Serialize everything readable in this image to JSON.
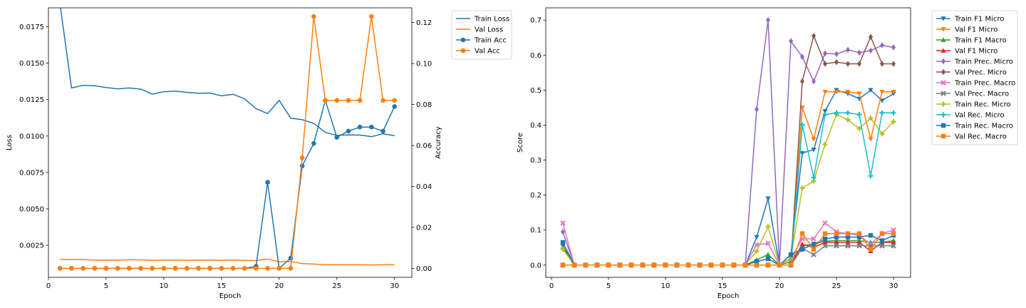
{
  "chart_data": [
    {
      "type": "line",
      "xlabel": "Epoch",
      "ylabel": "Loss",
      "y2label": "Accuracy",
      "xlim": [
        0,
        31.5
      ],
      "ylim": [
        0.0003,
        0.0188
      ],
      "y2lim": [
        -0.0044,
        0.1272
      ],
      "x_ticks": [
        0,
        5,
        10,
        15,
        20,
        25,
        30
      ],
      "y_ticks": [
        0.0025,
        0.005,
        0.0075,
        0.01,
        0.0125,
        0.015,
        0.0175
      ],
      "y2_ticks": [
        0.0,
        0.02,
        0.04,
        0.06,
        0.08,
        0.1,
        0.12
      ],
      "legend_position": "outside-top-right",
      "x": [
        1,
        2,
        3,
        4,
        5,
        6,
        7,
        8,
        9,
        10,
        11,
        12,
        13,
        14,
        15,
        16,
        17,
        18,
        19,
        20,
        21,
        22,
        23,
        24,
        25,
        26,
        27,
        28,
        29,
        30
      ],
      "series": [
        {
          "name": "Train Loss",
          "axis": "left",
          "color": "#1f77b4",
          "marker": "none",
          "values": [
            0.01905,
            0.0133,
            0.01348,
            0.01345,
            0.01333,
            0.01324,
            0.0133,
            0.01322,
            0.01288,
            0.01304,
            0.01308,
            0.013,
            0.01294,
            0.01295,
            0.01276,
            0.01287,
            0.01255,
            0.01188,
            0.01154,
            0.01245,
            0.01123,
            0.01112,
            0.01086,
            0.01025,
            0.01005,
            0.01008,
            0.01007,
            0.00996,
            0.01015,
            0.01003
          ]
        },
        {
          "name": "Val Loss",
          "axis": "left",
          "color": "#ff7f0e",
          "marker": "none",
          "values": [
            0.00152,
            0.00153,
            0.00153,
            0.00148,
            0.00149,
            0.00148,
            0.00151,
            0.0015,
            0.00147,
            0.00148,
            0.00148,
            0.00147,
            0.00149,
            0.00148,
            0.00147,
            0.00149,
            0.00146,
            0.00145,
            0.00156,
            0.00136,
            0.00139,
            0.00124,
            0.00121,
            0.00117,
            0.00117,
            0.00116,
            0.00116,
            0.00115,
            0.00116,
            0.00116
          ]
        },
        {
          "name": "Train Acc",
          "axis": "right",
          "color": "#1f77b4",
          "marker": "circle",
          "values": [
            0,
            0,
            0,
            0,
            0,
            0,
            0,
            0,
            0,
            0,
            0,
            0,
            0,
            0,
            0,
            0,
            0,
            0.001,
            0.042,
            0,
            0.005,
            0.05,
            0.061,
            0.082,
            0.064,
            0.067,
            0.069,
            0.069,
            0.067,
            0.079
          ]
        },
        {
          "name": "Val Acc",
          "axis": "right",
          "color": "#ff7f0e",
          "marker": "circle",
          "values": [
            0,
            0,
            0,
            0,
            0,
            0,
            0,
            0,
            0,
            0,
            0,
            0,
            0,
            0,
            0,
            0,
            0,
            0,
            0,
            0,
            0,
            0.054,
            0.123,
            0.082,
            0.082,
            0.082,
            0.082,
            0.123,
            0.082,
            0.082
          ]
        }
      ]
    },
    {
      "type": "line",
      "xlabel": "Epoch",
      "ylabel": "Score",
      "xlim": [
        -0.5,
        31.5
      ],
      "ylim": [
        -0.035,
        0.735
      ],
      "x_ticks": [
        0,
        5,
        10,
        15,
        20,
        25,
        30
      ],
      "y_ticks": [
        0.0,
        0.1,
        0.2,
        0.3,
        0.4,
        0.5,
        0.6,
        0.7
      ],
      "legend_position": "outside-top-right",
      "x": [
        1,
        2,
        3,
        4,
        5,
        6,
        7,
        8,
        9,
        10,
        11,
        12,
        13,
        14,
        15,
        16,
        17,
        18,
        19,
        20,
        21,
        22,
        23,
        24,
        25,
        26,
        27,
        28,
        29,
        30
      ],
      "series": [
        {
          "name": "Train F1 Micro",
          "color": "#1f77b4",
          "marker": "tri-down",
          "values": [
            0.055,
            0,
            0,
            0,
            0,
            0,
            0,
            0,
            0,
            0,
            0,
            0,
            0,
            0,
            0,
            0,
            0,
            0.08,
            0.19,
            0,
            0.03,
            0.32,
            0.33,
            0.44,
            0.5,
            0.49,
            0.475,
            0.5,
            0.47,
            0.49
          ]
        },
        {
          "name": "Val F1 Micro",
          "color": "#ff7f0e",
          "marker": "tri-down",
          "values": [
            0,
            0,
            0,
            0,
            0,
            0,
            0,
            0,
            0,
            0,
            0,
            0,
            0,
            0,
            0,
            0,
            0,
            0,
            0,
            0,
            0,
            0.45,
            0.36,
            0.495,
            0.495,
            0.495,
            0.49,
            0.36,
            0.495,
            0.495
          ]
        },
        {
          "name": "Train F1 Macro",
          "color": "#2ca02c",
          "marker": "tri-up",
          "values": [
            0.05,
            0,
            0,
            0,
            0,
            0,
            0,
            0,
            0,
            0,
            0,
            0,
            0,
            0,
            0,
            0,
            0,
            0.015,
            0.03,
            0,
            0.01,
            0.055,
            0.06,
            0.068,
            0.07,
            0.07,
            0.07,
            0.065,
            0.065,
            0.07
          ]
        },
        {
          "name": "Val F1 Micro",
          "color": "#d62728",
          "marker": "tri-up",
          "values": [
            0,
            0,
            0,
            0,
            0,
            0,
            0,
            0,
            0,
            0,
            0,
            0,
            0,
            0,
            0,
            0,
            0,
            0,
            0,
            0,
            0,
            0.06,
            0.05,
            0.065,
            0.065,
            0.065,
            0.065,
            0.04,
            0.065,
            0.065
          ]
        },
        {
          "name": "Train Prec. Micro",
          "color": "#9467bd",
          "marker": "diamond",
          "values": [
            0.095,
            0,
            0,
            0,
            0,
            0,
            0,
            0,
            0,
            0,
            0,
            0,
            0,
            0,
            0,
            0,
            0,
            0.445,
            0.7,
            0,
            0.64,
            0.595,
            0.525,
            0.605,
            0.603,
            0.615,
            0.607,
            0.613,
            0.628,
            0.622
          ]
        },
        {
          "name": "Val Prec. Micro",
          "color": "#8c564b",
          "marker": "diamond",
          "values": [
            0,
            0,
            0,
            0,
            0,
            0,
            0,
            0,
            0,
            0,
            0,
            0,
            0,
            0,
            0,
            0,
            0,
            0,
            0,
            0,
            0,
            0.525,
            0.655,
            0.575,
            0.58,
            0.575,
            0.575,
            0.652,
            0.575,
            0.575
          ]
        },
        {
          "name": "Train Prec. Macro",
          "color": "#e377c2",
          "marker": "x",
          "values": [
            0.12,
            0,
            0,
            0,
            0,
            0,
            0,
            0,
            0,
            0,
            0,
            0,
            0,
            0,
            0,
            0,
            0,
            0.058,
            0.062,
            0,
            0.018,
            0.075,
            0.075,
            0.12,
            0.095,
            0.09,
            0.085,
            0.06,
            0.09,
            0.1
          ]
        },
        {
          "name": "Val Prec. Macro",
          "color": "#7f7f7f",
          "marker": "x",
          "values": [
            0,
            0,
            0,
            0,
            0,
            0,
            0,
            0,
            0,
            0,
            0,
            0,
            0,
            0,
            0,
            0,
            0,
            0,
            0,
            0,
            0,
            0.048,
            0.03,
            0.055,
            0.055,
            0.055,
            0.055,
            0.055,
            0.055,
            0.055
          ]
        },
        {
          "name": "Train Rec. Micro",
          "color": "#bcbd22",
          "marker": "plus",
          "values": [
            0.045,
            0,
            0,
            0,
            0,
            0,
            0,
            0,
            0,
            0,
            0,
            0,
            0,
            0,
            0,
            0,
            0,
            0.04,
            0.11,
            0,
            0.02,
            0.22,
            0.24,
            0.345,
            0.43,
            0.415,
            0.39,
            0.42,
            0.375,
            0.41
          ]
        },
        {
          "name": "Val Rec. Micro",
          "color": "#17becf",
          "marker": "plus",
          "values": [
            0,
            0,
            0,
            0,
            0,
            0,
            0,
            0,
            0,
            0,
            0,
            0,
            0,
            0,
            0,
            0,
            0,
            0,
            0,
            0,
            0,
            0.4,
            0.25,
            0.43,
            0.435,
            0.435,
            0.43,
            0.255,
            0.435,
            0.435
          ]
        },
        {
          "name": "Train Rec. Macro",
          "color": "#1f77b4",
          "marker": "square",
          "values": [
            0.065,
            0,
            0,
            0,
            0,
            0,
            0,
            0,
            0,
            0,
            0,
            0,
            0,
            0,
            0,
            0,
            0,
            0.01,
            0.018,
            0,
            0.03,
            0.045,
            0.06,
            0.075,
            0.08,
            0.08,
            0.08,
            0.085,
            0.07,
            0.085
          ]
        },
        {
          "name": "Val Rec. Macro",
          "color": "#ff7f0e",
          "marker": "square",
          "values": [
            0,
            0,
            0,
            0,
            0,
            0,
            0,
            0,
            0,
            0,
            0,
            0,
            0,
            0,
            0,
            0,
            0,
            0,
            0,
            0,
            0,
            0.09,
            0.045,
            0.09,
            0.09,
            0.09,
            0.09,
            0.045,
            0.09,
            0.09
          ]
        }
      ]
    }
  ]
}
